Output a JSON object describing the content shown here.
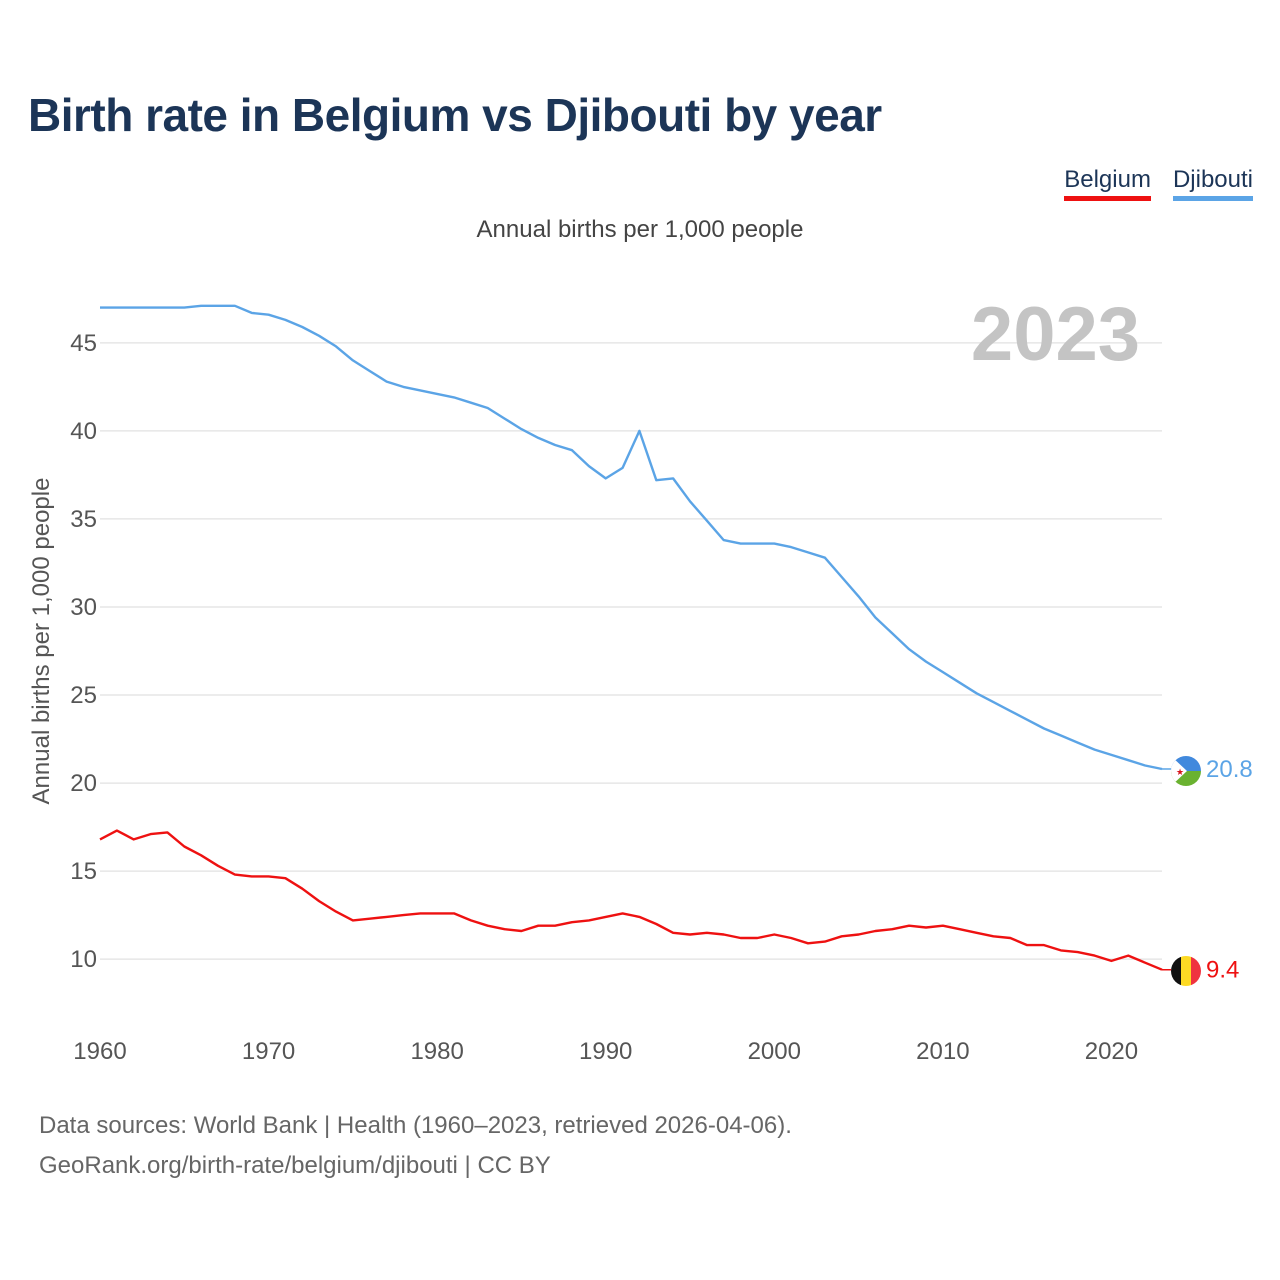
{
  "title": "Birth rate in Belgium vs Djibouti by year",
  "subtitle": "Annual births per 1,000 people",
  "source_line1": "Data sources: World Bank | Health (1960–2023, retrieved 2026-04-06).",
  "source_line2": "GeoRank.org/birth-rate/belgium/djibouti | CC BY",
  "legend": [
    {
      "name": "Belgium",
      "color": "#ee1111"
    },
    {
      "name": "Djibouti",
      "color": "#5ba4e6"
    }
  ],
  "chart_data": {
    "type": "line",
    "title": "Birth rate in Belgium vs Djibouti by year",
    "ylabel": "Annual births per 1,000 people",
    "xlabel": "",
    "year_label": "2023",
    "xlim": [
      1960,
      2023
    ],
    "ylim": [
      7,
      48
    ],
    "x_ticks": [
      1960,
      1970,
      1980,
      1990,
      2000,
      2010,
      2020
    ],
    "y_ticks": [
      10,
      15,
      20,
      25,
      30,
      35,
      40,
      45
    ],
    "grid": true,
    "x": [
      1960,
      1961,
      1962,
      1963,
      1964,
      1965,
      1966,
      1967,
      1968,
      1969,
      1970,
      1971,
      1972,
      1973,
      1974,
      1975,
      1976,
      1977,
      1978,
      1979,
      1980,
      1981,
      1982,
      1983,
      1984,
      1985,
      1986,
      1987,
      1988,
      1989,
      1990,
      1991,
      1992,
      1993,
      1994,
      1995,
      1996,
      1997,
      1998,
      1999,
      2000,
      2001,
      2002,
      2003,
      2004,
      2005,
      2006,
      2007,
      2008,
      2009,
      2010,
      2011,
      2012,
      2013,
      2014,
      2015,
      2016,
      2017,
      2018,
      2019,
      2020,
      2021,
      2022,
      2023
    ],
    "series": [
      {
        "name": "Belgium",
        "color": "#ee1111",
        "end_label": "9.4",
        "values": [
          16.8,
          17.3,
          16.8,
          17.1,
          17.2,
          16.4,
          15.9,
          15.3,
          14.8,
          14.7,
          14.7,
          14.6,
          14.0,
          13.3,
          12.7,
          12.2,
          12.3,
          12.4,
          12.5,
          12.6,
          12.6,
          12.6,
          12.2,
          11.9,
          11.7,
          11.6,
          11.9,
          11.9,
          12.1,
          12.2,
          12.4,
          12.6,
          12.4,
          12.0,
          11.5,
          11.4,
          11.5,
          11.4,
          11.2,
          11.2,
          11.4,
          11.2,
          10.9,
          11.0,
          11.3,
          11.4,
          11.6,
          11.7,
          11.9,
          11.8,
          11.9,
          11.7,
          11.5,
          11.3,
          11.2,
          10.8,
          10.8,
          10.5,
          10.4,
          10.2,
          9.9,
          10.2,
          9.8,
          9.4
        ]
      },
      {
        "name": "Djibouti",
        "color": "#5ba4e6",
        "end_label": "20.8",
        "values": [
          47.0,
          47.0,
          47.0,
          47.0,
          47.0,
          47.0,
          47.1,
          47.1,
          47.1,
          46.7,
          46.6,
          46.3,
          45.9,
          45.4,
          44.8,
          44.0,
          43.4,
          42.8,
          42.5,
          42.3,
          42.1,
          41.9,
          41.6,
          41.3,
          40.7,
          40.1,
          39.6,
          39.2,
          38.9,
          38.0,
          37.3,
          37.9,
          40.0,
          37.2,
          37.3,
          36.0,
          34.9,
          33.8,
          33.6,
          33.6,
          33.6,
          33.4,
          33.1,
          32.8,
          31.7,
          30.6,
          29.4,
          28.5,
          27.6,
          26.9,
          26.3,
          25.7,
          25.1,
          24.6,
          24.1,
          23.6,
          23.1,
          22.7,
          22.3,
          21.9,
          21.6,
          21.3,
          21.0,
          20.8
        ]
      }
    ]
  }
}
